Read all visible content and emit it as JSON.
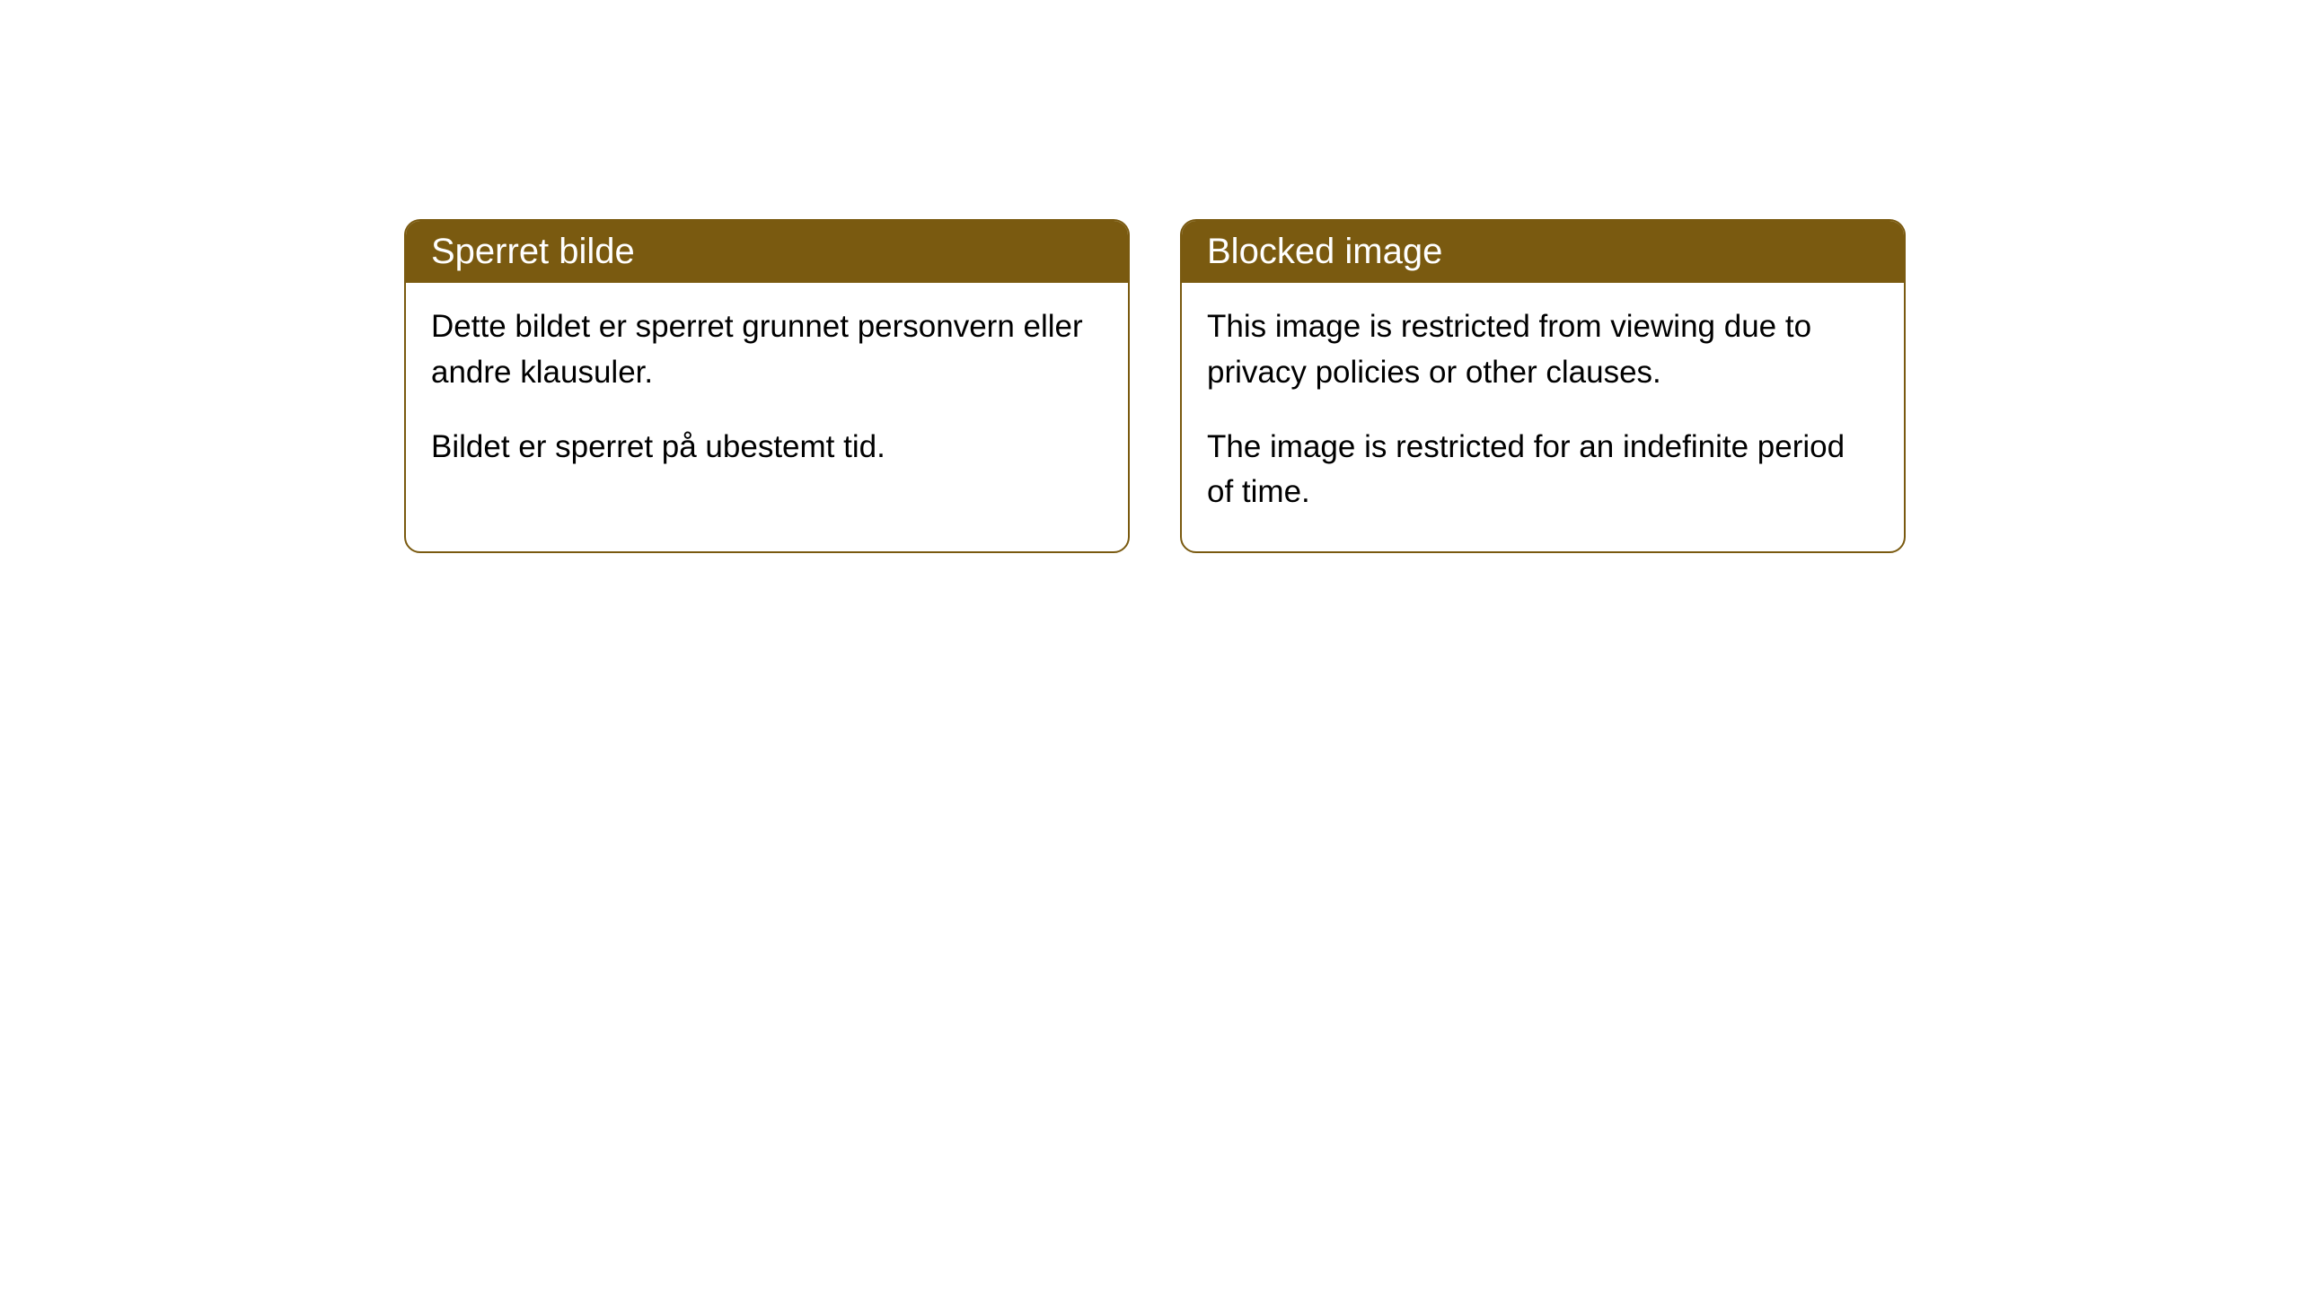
{
  "cards": [
    {
      "title": "Sperret bilde",
      "paragraph1": "Dette bildet er sperret grunnet personvern eller andre klausuler.",
      "paragraph2": "Bildet er sperret på ubestemt tid."
    },
    {
      "title": "Blocked image",
      "paragraph1": "This image is restricted from viewing due to privacy policies or other clauses.",
      "paragraph2": "The image is restricted for an indefinite period of time."
    }
  ],
  "styling": {
    "header_background": "#7a5a10",
    "header_text_color": "#ffffff",
    "card_border_color": "#7a5a10",
    "card_background": "#ffffff",
    "body_text_color": "#000000",
    "border_radius": 18,
    "header_fontsize": 40,
    "body_fontsize": 35
  }
}
